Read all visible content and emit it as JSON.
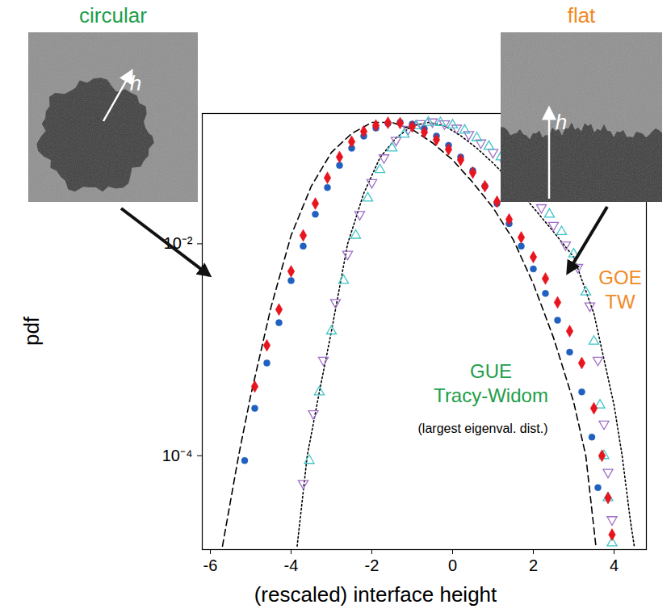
{
  "chart_data": {
    "type": "scatter",
    "x_label": "(rescaled) interface height",
    "y_label": "pdf",
    "log": "y",
    "grid": false,
    "xlim": [
      -6.2,
      4.8
    ],
    "xticks": [
      -6,
      -4,
      -2,
      0,
      2,
      4
    ],
    "ylim": [
      1.3e-05,
      0.17
    ],
    "yticks": [
      {
        "value": 0.01,
        "label": "10⁻²"
      },
      {
        "value": 0.0001,
        "label": "10⁻⁴"
      }
    ],
    "series": [
      {
        "type": "line",
        "color": "#000000",
        "line_style": "dashed",
        "x": [
          -5.7,
          -5.3,
          -5.0,
          -4.5,
          -4.0,
          -3.5,
          -3.0,
          -2.5,
          -2.0,
          -1.5,
          -1.0,
          -0.5,
          0,
          0.5,
          1.0,
          1.5,
          2.0,
          2.5,
          3.0,
          3.3,
          3.55
        ],
        "values": [
          1.4e-05,
          0.0001,
          0.00037,
          0.0025,
          0.012,
          0.035,
          0.073,
          0.11,
          0.14,
          0.14,
          0.12,
          0.09,
          0.062,
          0.038,
          0.022,
          0.011,
          0.0042,
          0.0013,
          0.00032,
          0.0001,
          1.4e-05
        ]
      },
      {
        "type": "line",
        "color": "#000000",
        "line_style": "dotted",
        "x": [
          -3.85,
          -3.6,
          -3.3,
          -3.0,
          -2.6,
          -2.2,
          -1.8,
          -1.4,
          -1.0,
          -0.6,
          -0.2,
          0.2,
          0.6,
          1.0,
          1.5,
          2.0,
          2.5,
          3.0,
          3.5,
          4.0,
          4.2,
          4.4,
          4.5
        ],
        "values": [
          1.4e-05,
          0.0001,
          0.0004,
          0.0015,
          0.01,
          0.03,
          0.065,
          0.1,
          0.13,
          0.14,
          0.13,
          0.105,
          0.08,
          0.058,
          0.037,
          0.022,
          0.013,
          0.0075,
          0.0022,
          0.0003,
          0.0001,
          2.5e-05,
          1.4e-05
        ]
      },
      {
        "type": "scatter",
        "color": "#a070c8",
        "marker": "triangle-down-open",
        "x": [
          -3.7,
          -3.45,
          -3.2,
          -2.9,
          -2.6,
          -2.3,
          -2.0,
          -1.7,
          -1.4,
          -1.1,
          -0.8,
          -0.5,
          -0.2,
          0.1,
          0.4,
          0.7,
          1.0,
          1.3,
          1.6,
          1.9,
          2.2,
          2.5,
          2.8,
          3.1,
          3.4,
          3.6,
          3.75,
          3.85,
          3.95
        ],
        "values": [
          5.5e-05,
          0.00025,
          0.0008,
          0.0028,
          0.008,
          0.019,
          0.038,
          0.065,
          0.095,
          0.121,
          0.137,
          0.142,
          0.136,
          0.124,
          0.108,
          0.09,
          0.073,
          0.057,
          0.043,
          0.031,
          0.022,
          0.015,
          0.0098,
          0.006,
          0.0026,
          0.0008,
          0.0002,
          7e-05,
          2.5e-05
        ]
      },
      {
        "type": "scatter",
        "color": "#40c4c8",
        "marker": "triangle-up-open",
        "x": [
          -3.55,
          -3.3,
          -3.0,
          -2.7,
          -2.4,
          -2.1,
          -1.8,
          -1.5,
          -1.2,
          -0.9,
          -0.6,
          -0.3,
          0.0,
          0.3,
          0.6,
          0.9,
          1.2,
          1.5,
          1.8,
          2.1,
          2.4,
          2.7,
          3.0,
          3.3,
          3.5,
          3.65,
          3.75,
          3.85,
          3.95
        ],
        "values": [
          9e-05,
          0.0004,
          0.0015,
          0.0045,
          0.012,
          0.027,
          0.05,
          0.08,
          0.108,
          0.13,
          0.14,
          0.139,
          0.132,
          0.118,
          0.1,
          0.083,
          0.066,
          0.051,
          0.038,
          0.027,
          0.019,
          0.013,
          0.008,
          0.0035,
          0.0012,
          0.0003,
          0.0001,
          4e-05,
          1.5e-05
        ]
      },
      {
        "type": "scatter",
        "color": "#2060c0",
        "marker": "circle",
        "x": [
          -5.15,
          -4.9,
          -4.6,
          -4.3,
          -4.0,
          -3.7,
          -3.4,
          -3.1,
          -2.8,
          -2.5,
          -2.2,
          -1.9,
          -1.6,
          -1.3,
          -1.0,
          -0.7,
          -0.4,
          -0.1,
          0.2,
          0.5,
          0.8,
          1.1,
          1.4,
          1.7,
          2.0,
          2.3,
          2.6,
          2.9,
          3.2,
          3.45,
          3.6
        ],
        "values": [
          9e-05,
          0.00028,
          0.00075,
          0.0018,
          0.0045,
          0.0095,
          0.019,
          0.034,
          0.055,
          0.08,
          0.104,
          0.124,
          0.137,
          0.14,
          0.135,
          0.122,
          0.104,
          0.085,
          0.066,
          0.049,
          0.035,
          0.024,
          0.0155,
          0.0095,
          0.0058,
          0.0034,
          0.0019,
          0.00095,
          0.0004,
          0.00015,
          5e-05
        ]
      },
      {
        "type": "scatter",
        "color": "#e8141e",
        "marker": "diamond",
        "x": [
          -4.9,
          -4.6,
          -4.3,
          -4.0,
          -3.7,
          -3.4,
          -3.1,
          -2.8,
          -2.5,
          -2.2,
          -1.9,
          -1.6,
          -1.3,
          -1.0,
          -0.7,
          -0.4,
          -0.1,
          0.2,
          0.5,
          0.8,
          1.1,
          1.4,
          1.7,
          2.0,
          2.3,
          2.6,
          2.9,
          3.2,
          3.5,
          3.7,
          3.85,
          3.95
        ],
        "values": [
          0.00045,
          0.0011,
          0.0024,
          0.0055,
          0.012,
          0.024,
          0.042,
          0.066,
          0.092,
          0.115,
          0.131,
          0.139,
          0.138,
          0.128,
          0.113,
          0.096,
          0.078,
          0.062,
          0.047,
          0.035,
          0.025,
          0.017,
          0.0115,
          0.0075,
          0.0047,
          0.0028,
          0.0015,
          0.00075,
          0.00028,
          0.0001,
          4e-05,
          1.8e-05
        ]
      }
    ],
    "annotations": [
      {
        "text": "circular",
        "color": "#1e9e4a"
      },
      {
        "text": "flat",
        "color": "#f08a24"
      },
      {
        "text": "h",
        "color": "#ffffff"
      },
      {
        "text": "h",
        "color": "#ffffff"
      },
      {
        "text": "GOE TW",
        "color": "#f08a24"
      },
      {
        "text": "GUE Tracy-Widom",
        "color": "#1e9e4a"
      },
      {
        "text": "(largest eigenval. dist.)",
        "color": "#000000"
      }
    ]
  }
}
